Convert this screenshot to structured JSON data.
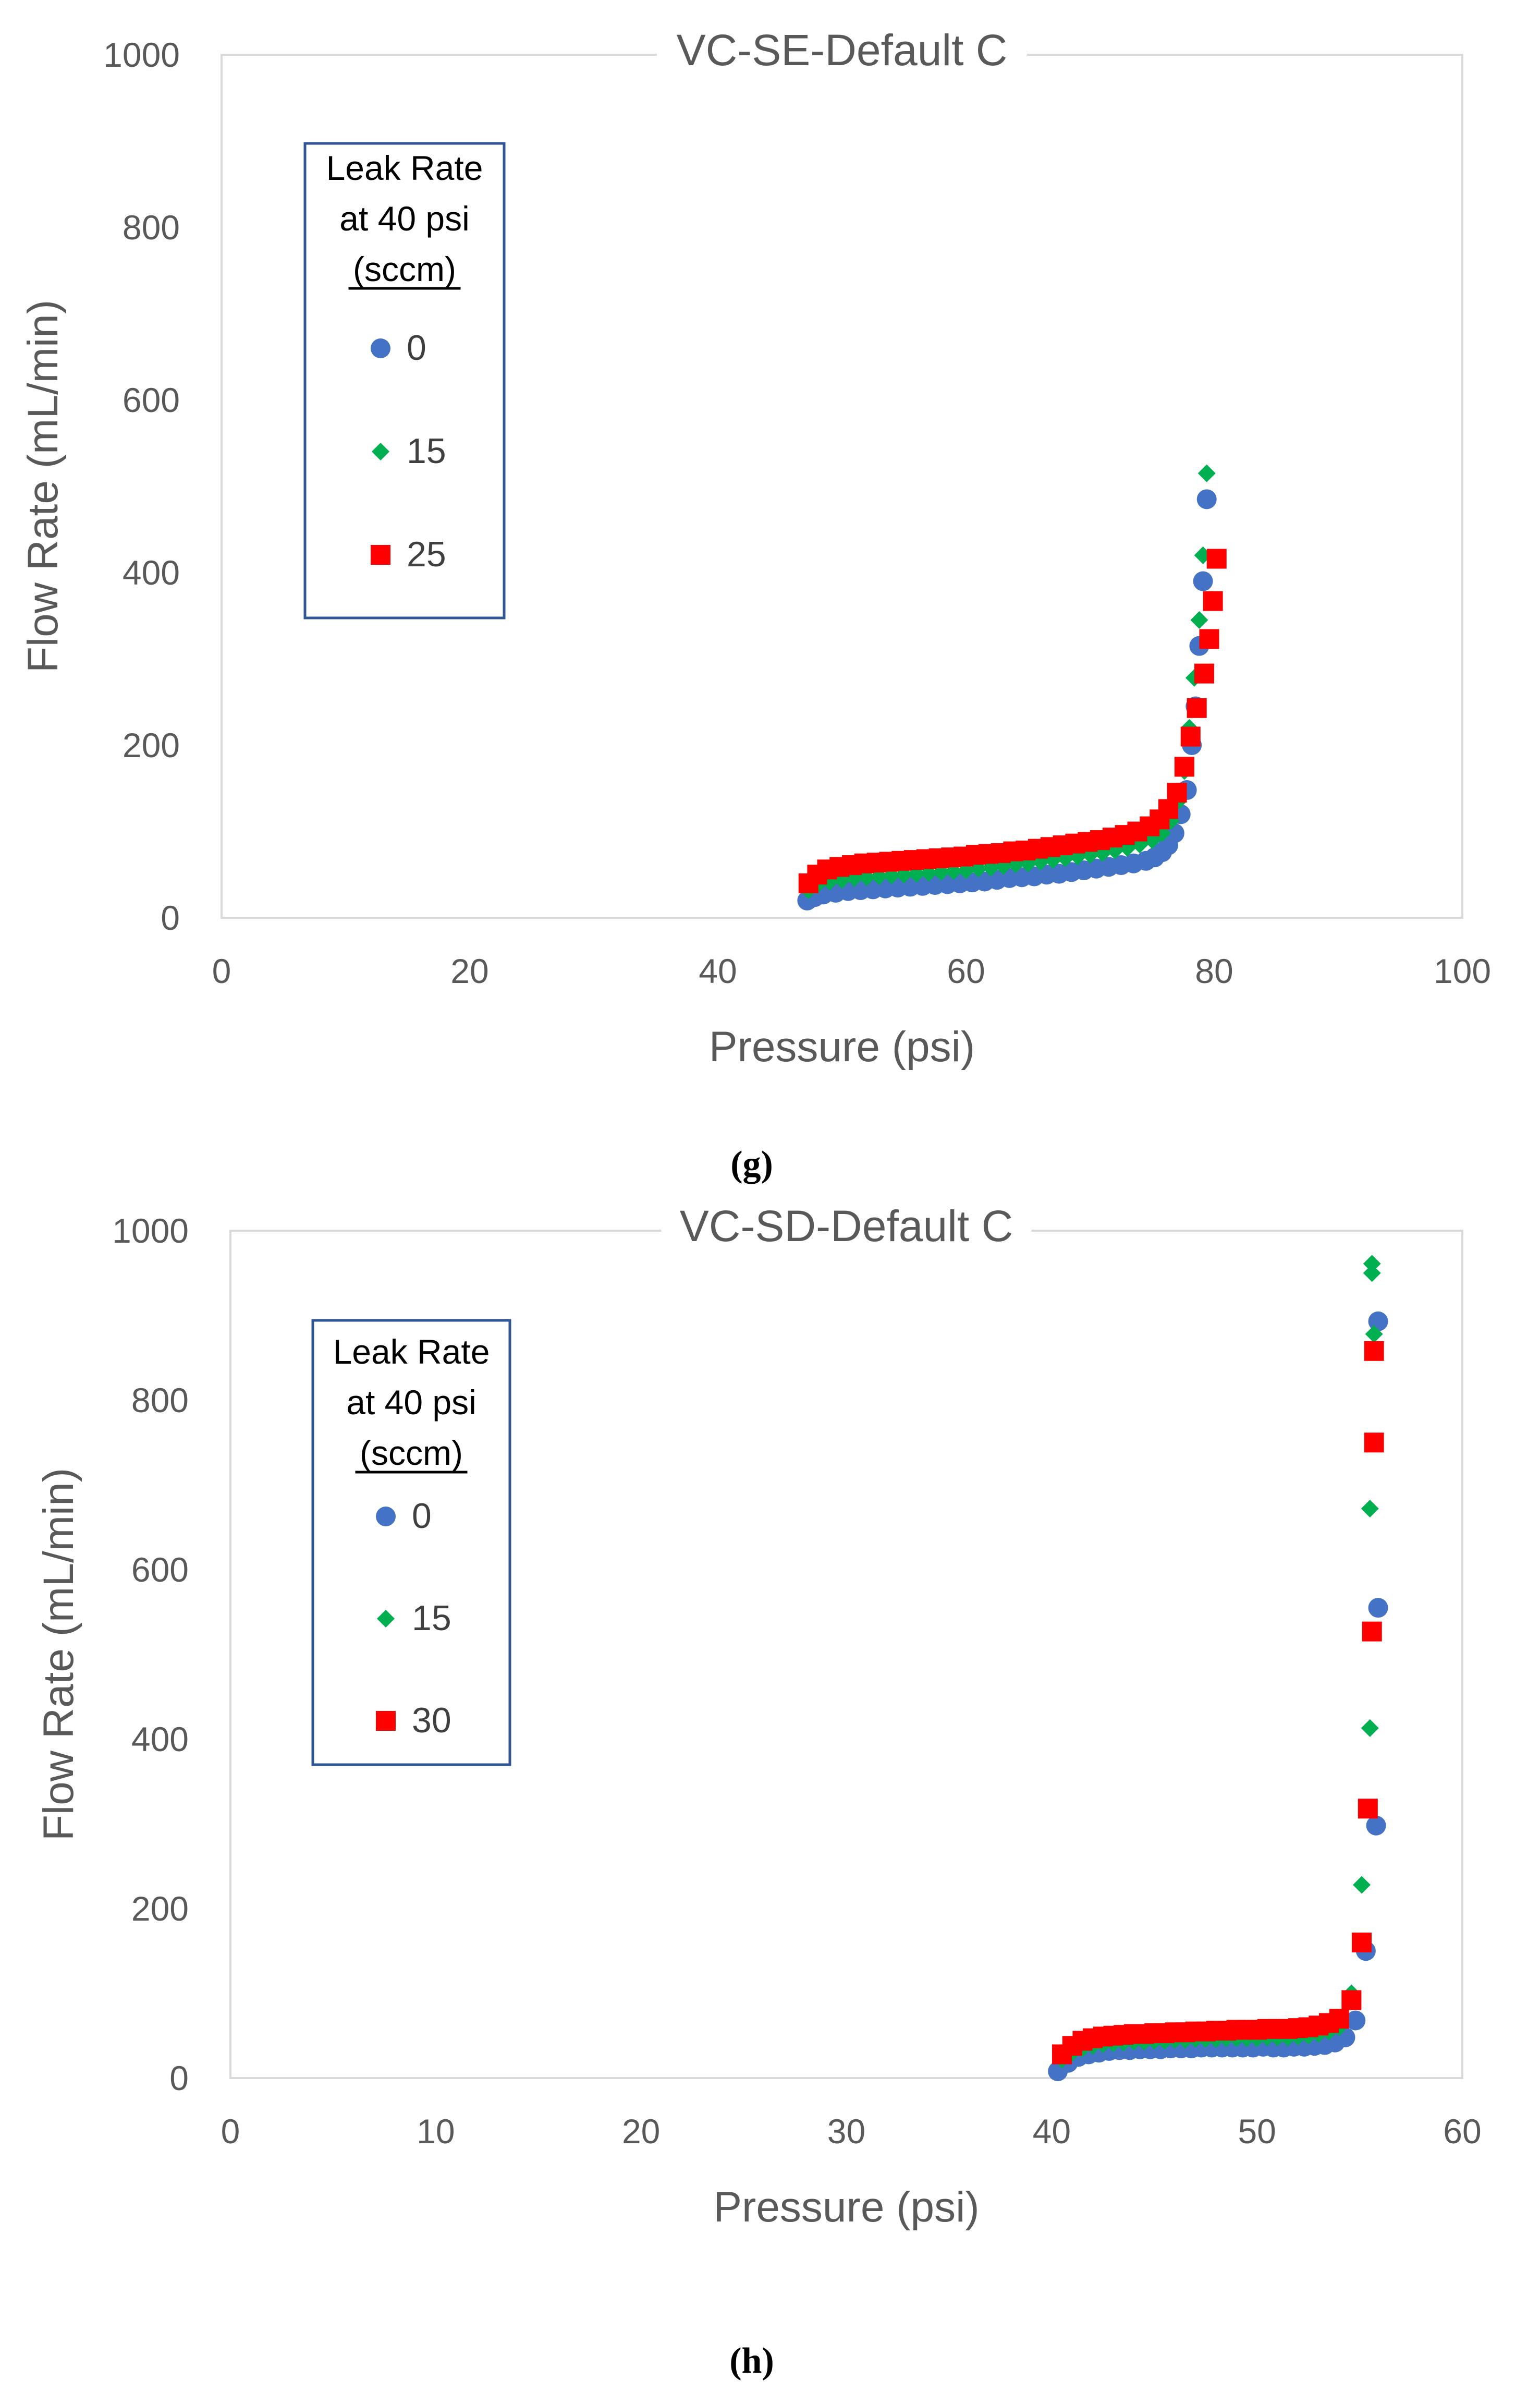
{
  "chart_data": [
    {
      "type": "scatter",
      "title": "VC-SE-Default C",
      "xlabel": "Pressure (psi)",
      "ylabel": "Flow Rate (mL/min)",
      "xlim": [
        0,
        100
      ],
      "ylim": [
        0,
        1000
      ],
      "xticks": [
        "0",
        "20",
        "40",
        "60",
        "80",
        "100"
      ],
      "yticks": [
        "0",
        "200",
        "400",
        "600",
        "800",
        "1000"
      ],
      "legend": {
        "title": [
          "Leak Rate",
          "at 40 psi",
          "(sccm)"
        ],
        "entries": [
          "0",
          "15",
          "25"
        ]
      },
      "caption": "(g)",
      "series": [
        {
          "name": "0",
          "color": "#4472c4",
          "marker": "circle",
          "points": [
            [
              47.2,
              20
            ],
            [
              47.8,
              24
            ],
            [
              48.5,
              27
            ],
            [
              49.5,
              29
            ],
            [
              50.5,
              31
            ],
            [
              51.5,
              32
            ],
            [
              52.5,
              33
            ],
            [
              53.5,
              34
            ],
            [
              54.5,
              35
            ],
            [
              55.5,
              36
            ],
            [
              56.5,
              37
            ],
            [
              57.5,
              38
            ],
            [
              58.5,
              39
            ],
            [
              59.5,
              40
            ],
            [
              60.5,
              41
            ],
            [
              61.5,
              42
            ],
            [
              62.5,
              44
            ],
            [
              63.5,
              46
            ],
            [
              64.5,
              47
            ],
            [
              65.5,
              48
            ],
            [
              66.5,
              50
            ],
            [
              67.5,
              51
            ],
            [
              68.5,
              53
            ],
            [
              69.5,
              55
            ],
            [
              70.5,
              57
            ],
            [
              71.5,
              59
            ],
            [
              72.5,
              61
            ],
            [
              73.5,
              63
            ],
            [
              74.5,
              66
            ],
            [
              75.2,
              70
            ],
            [
              75.8,
              76
            ],
            [
              76.3,
              84
            ],
            [
              76.8,
              98
            ],
            [
              77.3,
              120
            ],
            [
              77.8,
              148
            ],
            [
              78.2,
              200
            ],
            [
              78.5,
              245
            ],
            [
              78.8,
              315
            ],
            [
              79.1,
              390
            ],
            [
              79.4,
              485
            ]
          ]
        },
        {
          "name": "15",
          "color": "#00b050",
          "marker": "diamond",
          "points": [
            [
              47.3,
              32
            ],
            [
              48,
              38
            ],
            [
              49,
              42
            ],
            [
              50,
              44
            ],
            [
              51,
              46
            ],
            [
              52,
              47
            ],
            [
              53,
              48
            ],
            [
              54,
              49
            ],
            [
              55,
              50
            ],
            [
              56,
              51
            ],
            [
              57,
              52
            ],
            [
              58,
              53
            ],
            [
              59,
              54
            ],
            [
              60,
              55
            ],
            [
              61,
              57
            ],
            [
              62,
              58
            ],
            [
              63,
              60
            ],
            [
              64,
              62
            ],
            [
              65,
              63
            ],
            [
              66,
              65
            ],
            [
              67,
              67
            ],
            [
              68,
              69
            ],
            [
              69,
              71
            ],
            [
              70,
              73
            ],
            [
              71,
              75
            ],
            [
              72,
              78
            ],
            [
              73,
              81
            ],
            [
              74,
              85
            ],
            [
              75,
              90
            ],
            [
              75.8,
              98
            ],
            [
              76.5,
              112
            ],
            [
              77.1,
              135
            ],
            [
              77.6,
              170
            ],
            [
              78,
              220
            ],
            [
              78.4,
              278
            ],
            [
              78.8,
              345
            ],
            [
              79.1,
              420
            ],
            [
              79.4,
              515
            ]
          ]
        },
        {
          "name": "25",
          "color": "#ff0000",
          "marker": "square",
          "points": [
            [
              47.3,
              40
            ],
            [
              48,
              50
            ],
            [
              48.8,
              56
            ],
            [
              49.8,
              59
            ],
            [
              50.8,
              61
            ],
            [
              51.8,
              63
            ],
            [
              52.8,
              64
            ],
            [
              53.8,
              65
            ],
            [
              54.8,
              66
            ],
            [
              55.8,
              67
            ],
            [
              56.8,
              68
            ],
            [
              57.8,
              69
            ],
            [
              58.8,
              70
            ],
            [
              59.8,
              71
            ],
            [
              60.8,
              73
            ],
            [
              61.8,
              74
            ],
            [
              62.8,
              75
            ],
            [
              63.8,
              77
            ],
            [
              64.8,
              78
            ],
            [
              65.8,
              80
            ],
            [
              66.8,
              82
            ],
            [
              67.8,
              84
            ],
            [
              68.8,
              86
            ],
            [
              69.8,
              88
            ],
            [
              70.8,
              90
            ],
            [
              71.8,
              93
            ],
            [
              72.8,
              96
            ],
            [
              73.8,
              100
            ],
            [
              74.8,
              106
            ],
            [
              75.6,
              114
            ],
            [
              76.3,
              126
            ],
            [
              77,
              145
            ],
            [
              77.6,
              175
            ],
            [
              78.1,
              210
            ],
            [
              78.6,
              243
            ],
            [
              79.2,
              283
            ],
            [
              79.6,
              323
            ],
            [
              79.9,
              367
            ],
            [
              80.2,
              416
            ]
          ]
        }
      ]
    },
    {
      "type": "scatter",
      "title": "VC-SD-Default C",
      "xlabel": "Pressure (psi)",
      "ylabel": "Flow Rate (mL/min)",
      "xlim": [
        0,
        60
      ],
      "ylim": [
        0,
        1000
      ],
      "xticks": [
        "0",
        "10",
        "20",
        "30",
        "40",
        "50",
        "60"
      ],
      "yticks": [
        "0",
        "200",
        "400",
        "600",
        "800",
        "1000"
      ],
      "legend": {
        "title": [
          "Leak Rate",
          "at 40 psi",
          "(sccm)"
        ],
        "entries": [
          "0",
          "15",
          "30"
        ]
      },
      "caption": "(h)",
      "series": [
        {
          "name": "0",
          "color": "#4472c4",
          "marker": "circle",
          "points": [
            [
              40.3,
              8
            ],
            [
              40.8,
              18
            ],
            [
              41.3,
              25
            ],
            [
              41.8,
              28
            ],
            [
              42.3,
              30
            ],
            [
              42.8,
              32
            ],
            [
              43.3,
              33
            ],
            [
              43.8,
              33
            ],
            [
              44.3,
              34
            ],
            [
              44.8,
              34
            ],
            [
              45.3,
              34
            ],
            [
              45.8,
              35
            ],
            [
              46.3,
              35
            ],
            [
              46.8,
              35
            ],
            [
              47.3,
              36
            ],
            [
              47.8,
              36
            ],
            [
              48.3,
              36
            ],
            [
              48.8,
              36
            ],
            [
              49.3,
              36
            ],
            [
              49.8,
              36
            ],
            [
              50.3,
              37
            ],
            [
              50.8,
              36
            ],
            [
              51.3,
              36
            ],
            [
              51.8,
              37
            ],
            [
              52.3,
              37
            ],
            [
              52.8,
              38
            ],
            [
              53.3,
              39
            ],
            [
              53.8,
              42
            ],
            [
              54.3,
              48
            ],
            [
              54.8,
              68
            ],
            [
              55.3,
              150
            ],
            [
              55.8,
              298
            ],
            [
              55.9,
              555
            ],
            [
              55.9,
              893
            ]
          ]
        },
        {
          "name": "15",
          "color": "#00b050",
          "marker": "diamond",
          "points": [
            [
              40.5,
              22
            ],
            [
              41,
              30
            ],
            [
              41.5,
              35
            ],
            [
              42,
              38
            ],
            [
              42.5,
              40
            ],
            [
              43,
              41
            ],
            [
              43.5,
              42
            ],
            [
              44,
              43
            ],
            [
              44.5,
              43
            ],
            [
              45,
              44
            ],
            [
              45.5,
              44
            ],
            [
              46,
              45
            ],
            [
              46.5,
              45
            ],
            [
              47,
              46
            ],
            [
              47.5,
              46
            ],
            [
              48,
              46
            ],
            [
              48.5,
              47
            ],
            [
              49,
              47
            ],
            [
              49.5,
              47
            ],
            [
              50,
              47
            ],
            [
              50.5,
              48
            ],
            [
              51,
              48
            ],
            [
              51.5,
              48
            ],
            [
              52,
              49
            ],
            [
              52.5,
              50
            ],
            [
              53,
              52
            ],
            [
              53.5,
              55
            ],
            [
              54,
              60
            ],
            [
              54.6,
              100
            ],
            [
              55.1,
              228
            ],
            [
              55.5,
              413
            ],
            [
              55.5,
              672
            ],
            [
              55.7,
              878
            ],
            [
              55.6,
              950
            ],
            [
              55.6,
              961
            ]
          ]
        },
        {
          "name": "30",
          "color": "#ff0000",
          "marker": "square",
          "points": [
            [
              40.5,
              28
            ],
            [
              41,
              38
            ],
            [
              41.5,
              44
            ],
            [
              42,
              47
            ],
            [
              42.5,
              49
            ],
            [
              43,
              50
            ],
            [
              43.5,
              51
            ],
            [
              44,
              52
            ],
            [
              44.5,
              52
            ],
            [
              45,
              53
            ],
            [
              45.5,
              53
            ],
            [
              46,
              54
            ],
            [
              46.5,
              54
            ],
            [
              47,
              55
            ],
            [
              47.5,
              55
            ],
            [
              48,
              56
            ],
            [
              48.5,
              56
            ],
            [
              49,
              57
            ],
            [
              49.5,
              57
            ],
            [
              50,
              57
            ],
            [
              50.5,
              58
            ],
            [
              51,
              58
            ],
            [
              51.5,
              58
            ],
            [
              52,
              59
            ],
            [
              52.5,
              60
            ],
            [
              53,
              62
            ],
            [
              53.5,
              65
            ],
            [
              54,
              70
            ],
            [
              54.6,
              92
            ],
            [
              55.1,
              160
            ],
            [
              55.4,
              318
            ],
            [
              55.6,
              527
            ],
            [
              55.7,
              750
            ],
            [
              55.7,
              858
            ]
          ]
        }
      ]
    }
  ]
}
